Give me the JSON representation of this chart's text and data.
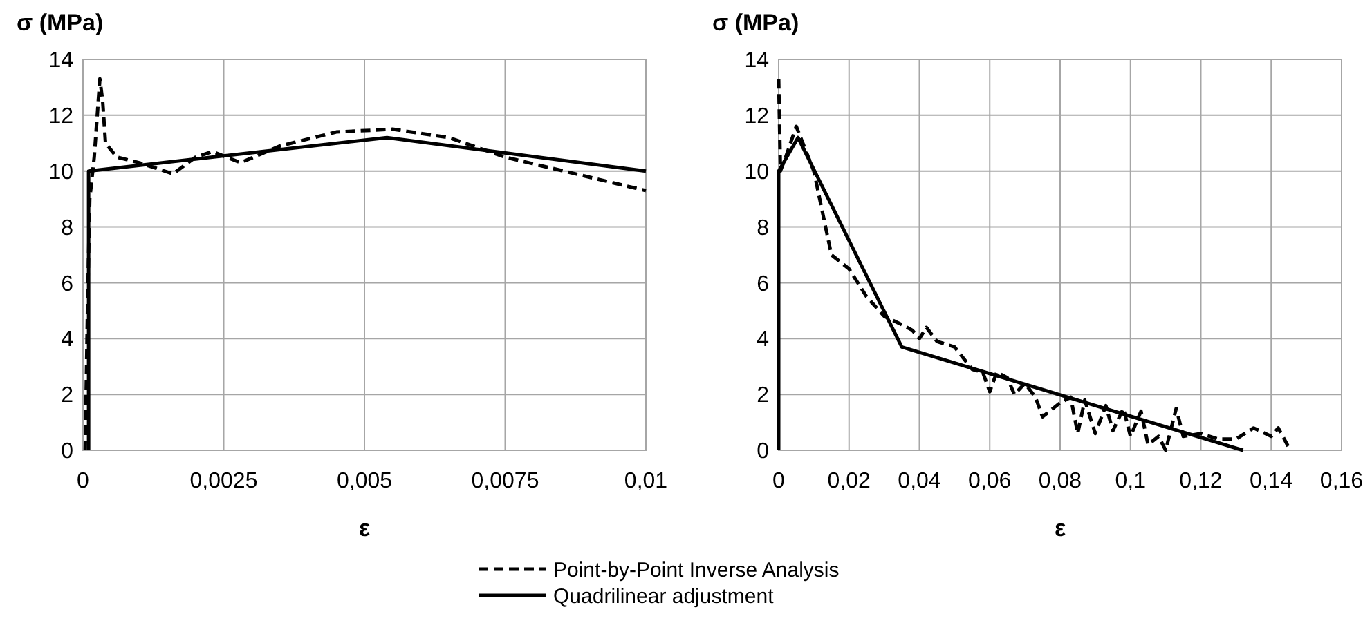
{
  "chart_data": [
    {
      "type": "line",
      "xlabel": "ε",
      "ylabel": "σ (MPa)",
      "xlim": [
        0,
        0.01
      ],
      "ylim": [
        0,
        14
      ],
      "xticks": [
        0,
        {
          "value": 0.0025,
          "label": "0,0025"
        },
        {
          "value": 0.005,
          "label": "0,005"
        },
        {
          "value": 0.0075,
          "label": "0,0075"
        },
        {
          "value": 0.01,
          "label": "0,01"
        }
      ],
      "yticks": [
        0,
        2,
        4,
        6,
        8,
        10,
        12,
        14
      ],
      "grid": true,
      "legend": "bottom",
      "series": [
        {
          "name": "Point-by-Point Inverse Analysis",
          "color": "#000000",
          "line_style": "dashed",
          "x": [
            4e-05,
            8e-05,
            0.00012,
            0.0002,
            0.0003,
            0.00035,
            0.0004,
            0.0006,
            0.001,
            0.0016,
            0.002,
            0.0023,
            0.0028,
            0.0035,
            0.0045,
            0.0055,
            0.0065,
            0.0075,
            0.01
          ],
          "values": [
            0,
            5,
            9,
            10.5,
            13.3,
            12.5,
            11,
            10.5,
            10.3,
            9.9,
            10.5,
            10.7,
            10.3,
            10.9,
            11.4,
            11.5,
            11.2,
            10.5,
            9.3
          ]
        },
        {
          "name": "Quadrilinear adjustment",
          "color": "#000000",
          "line_style": "solid",
          "x": [
            0.0001,
            0.0001,
            0.0054,
            0.01
          ],
          "values": [
            0,
            10,
            11.2,
            10
          ]
        }
      ]
    },
    {
      "type": "line",
      "xlabel": "ε",
      "ylabel": "σ (MPa)",
      "xlim": [
        0,
        0.16
      ],
      "ylim": [
        0,
        14
      ],
      "xticks": [
        0,
        {
          "value": 0.02,
          "label": "0,02"
        },
        {
          "value": 0.04,
          "label": "0,04"
        },
        {
          "value": 0.06,
          "label": "0,06"
        },
        {
          "value": 0.08,
          "label": "0,08"
        },
        {
          "value": 0.1,
          "label": "0,1"
        },
        {
          "value": 0.12,
          "label": "0,12"
        },
        {
          "value": 0.14,
          "label": "0,14"
        },
        {
          "value": 0.16,
          "label": "0,16"
        }
      ],
      "yticks": [
        0,
        2,
        4,
        6,
        8,
        10,
        12,
        14
      ],
      "grid": true,
      "series": [
        {
          "color": "#000000",
          "line_style": "dashed",
          "x": [
            0,
            0.0005,
            0.002,
            0.005,
            0.01,
            0.015,
            0.02,
            0.025,
            0.03,
            0.035,
            0.038,
            0.04,
            0.042,
            0.045,
            0.05,
            0.055,
            0.058,
            0.06,
            0.062,
            0.065,
            0.067,
            0.07,
            0.073,
            0.075,
            0.078,
            0.08,
            0.083,
            0.085,
            0.087,
            0.09,
            0.093,
            0.095,
            0.098,
            0.1,
            0.103,
            0.105,
            0.108,
            0.11,
            0.113,
            0.115,
            0.12,
            0.125,
            0.13,
            0.135,
            0.14,
            0.142,
            0.145
          ],
          "values": [
            13.3,
            10,
            10.5,
            11.6,
            10,
            7,
            6.5,
            5.5,
            4.8,
            4.5,
            4.3,
            4,
            4.4,
            3.9,
            3.7,
            2.9,
            2.8,
            2.1,
            2.8,
            2.6,
            2,
            2.4,
            1.9,
            1.2,
            1.5,
            1.7,
            1.9,
            0.6,
            1.8,
            0.6,
            1.6,
            0.7,
            1.5,
            0.5,
            1.4,
            0.2,
            0.5,
            0,
            1.5,
            0.5,
            0.6,
            0.4,
            0.4,
            0.8,
            0.5,
            0.8,
            0.1
          ]
        },
        {
          "color": "#000000",
          "line_style": "solid",
          "x": [
            0,
            0,
            0.0055,
            0.035,
            0.132
          ],
          "values": [
            0,
            10,
            11.2,
            3.7,
            0
          ]
        }
      ]
    }
  ]
}
